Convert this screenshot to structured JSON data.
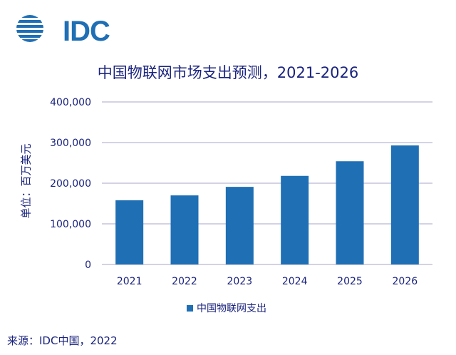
{
  "logo": {
    "text": "IDC",
    "color": "#1f6fb5"
  },
  "chart_data": {
    "type": "bar",
    "title": "中国物联网市场支出预测，2021-2026",
    "ylabel": "单位：百万美元",
    "xlabel": "",
    "categories": [
      "2021",
      "2022",
      "2023",
      "2024",
      "2025",
      "2026"
    ],
    "series": [
      {
        "name": "中国物联网支出",
        "values": [
          158000,
          170000,
          191000,
          218000,
          254000,
          293000
        ],
        "color": "#1f6fb5"
      }
    ],
    "ylim": [
      0,
      400000
    ],
    "yticks": [
      0,
      100000,
      200000,
      300000,
      400000
    ],
    "ytick_labels": [
      "0",
      "100,000",
      "200,000",
      "300,000",
      "400,000"
    ],
    "grid": true,
    "legend_position": "bottom"
  },
  "source": "来源：IDC中国，2022"
}
